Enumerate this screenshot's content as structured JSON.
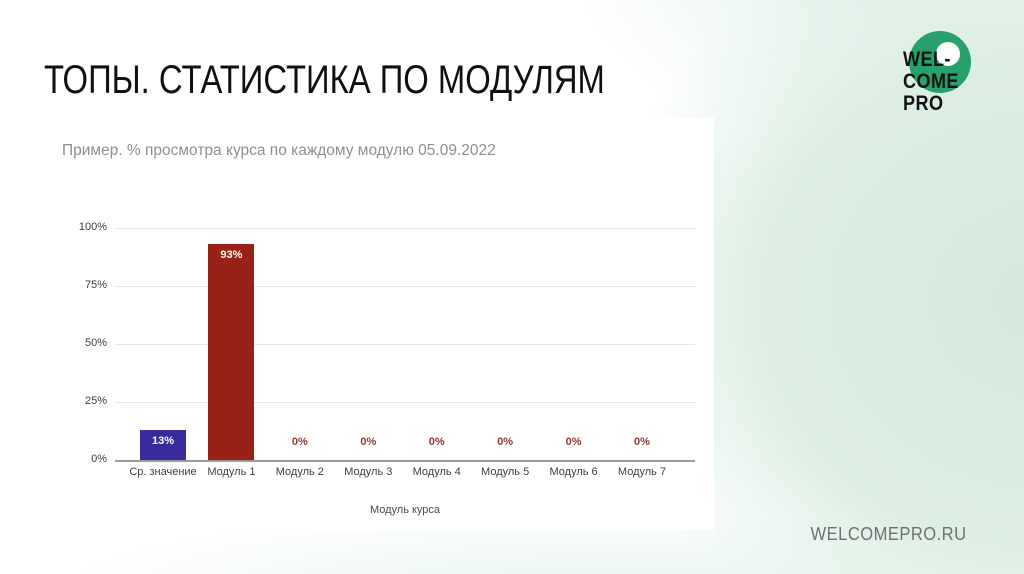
{
  "slide": {
    "title": "ТОПЫ. СТАТИСТИКА ПО МОДУЛЯМ"
  },
  "logo": {
    "lines": [
      "WEL-",
      "COME",
      "PRO"
    ],
    "circle_color": "#27a06b"
  },
  "footer": {
    "url": "WELCOMEPRO.RU"
  },
  "chart_data": {
    "type": "bar",
    "title": "Пример. % просмотра курса по каждому модулю 05.09.2022",
    "xlabel": "Модуль курса",
    "ylabel": "",
    "categories": [
      "Ср. значение",
      "Модуль 1",
      "Модуль 2",
      "Модуль 3",
      "Модуль 4",
      "Модуль 5",
      "Модуль 6",
      "Модуль 7"
    ],
    "values": [
      13,
      93,
      0,
      0,
      0,
      0,
      0,
      0
    ],
    "value_labels": [
      "13%",
      "93%",
      "0%",
      "0%",
      "0%",
      "0%",
      "0%",
      "0%"
    ],
    "bar_colors": [
      "#392b9b",
      "#992218",
      "#992218",
      "#992218",
      "#992218",
      "#992218",
      "#992218",
      "#992218"
    ],
    "zero_label_color": "#943830",
    "ylim": [
      0,
      100
    ],
    "ytick_values": [
      0,
      25,
      50,
      75,
      100
    ],
    "ytick_labels": [
      "0%",
      "25%",
      "50%",
      "75%",
      "100%"
    ],
    "grid": true,
    "legend": false
  },
  "colors": {
    "background_mint": "#d7ebe1",
    "panel": "#ffffff",
    "gridline": "#e7e7e7",
    "axis_line": "#9b9b9b",
    "axis_text": "#3e3e3e",
    "chart_title_text": "#8f8f8f",
    "title_text": "#101010",
    "footer_text": "#6f6f6f"
  }
}
